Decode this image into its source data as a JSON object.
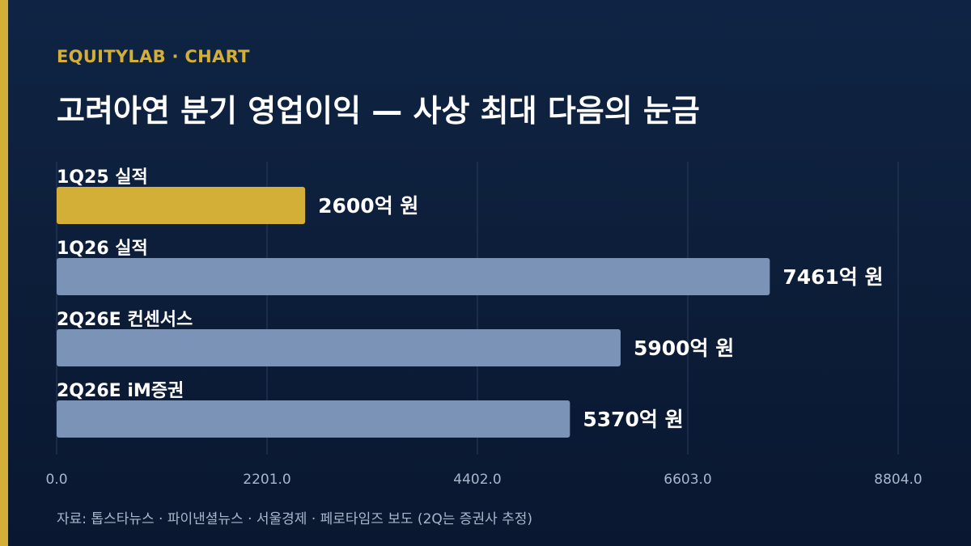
{
  "header": {
    "brand": "EQUITYLAB · CHART",
    "title": "고려아연 분기 영업이익 — 사상 최대 다음의 눈금"
  },
  "footer": {
    "source": "자료: 톱스타뉴스 · 파이낸셜뉴스 · 서울경제 · 페로타임즈 보도 (2Q는 증권사 추정)"
  },
  "colors": {
    "background": "#0f2444",
    "accent": "#d4af37",
    "bar_default": "#7b93b6",
    "grid": "#2a3d5c",
    "tick_text": "#a9b7cc"
  },
  "chart_data": {
    "type": "bar",
    "orientation": "horizontal",
    "categories": [
      "1Q25 실적",
      "1Q26 실적",
      "2Q26E 컨센서스",
      "2Q26E iM증권"
    ],
    "values": [
      2600,
      7461,
      5900,
      5370
    ],
    "value_labels": [
      "2600억 원",
      "7461억 원",
      "5900억 원",
      "5370억 원"
    ],
    "highlight_index": 0,
    "xlim": [
      0,
      8804
    ],
    "x_ticks": [
      0,
      2201,
      4402,
      6603,
      8804
    ],
    "x_tick_labels": [
      "0.0",
      "2201.0",
      "4402.0",
      "6603.0",
      "8804.0"
    ],
    "grid": true,
    "legend": "none"
  }
}
